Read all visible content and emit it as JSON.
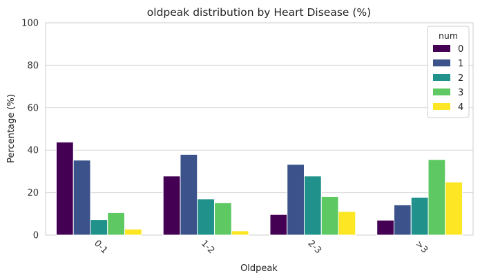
{
  "chart_data": {
    "type": "bar",
    "title": "oldpeak distribution by Heart Disease (%)",
    "xlabel": "Oldpeak",
    "ylabel": "Percentage (%)",
    "ylim": [
      0,
      100
    ],
    "yticks": [
      0,
      20,
      40,
      60,
      80,
      100
    ],
    "grid": "y",
    "categories": [
      "0-1",
      "1-2",
      "2-3",
      ">3"
    ],
    "legend": {
      "title": "num",
      "placement": "top-right"
    },
    "series": [
      {
        "name": "0",
        "color": "#440154",
        "values": [
          43.8,
          27.8,
          9.7,
          7.0
        ]
      },
      {
        "name": "1",
        "color": "#3b528b",
        "values": [
          35.3,
          38.0,
          33.3,
          14.2
        ]
      },
      {
        "name": "2",
        "color": "#21918c",
        "values": [
          7.3,
          17.0,
          27.8,
          17.8
        ]
      },
      {
        "name": "3",
        "color": "#5ec962",
        "values": [
          10.6,
          15.2,
          18.1,
          35.6
        ]
      },
      {
        "name": "4",
        "color": "#fde725",
        "values": [
          2.8,
          2.0,
          11.1,
          25.0
        ]
      }
    ]
  }
}
